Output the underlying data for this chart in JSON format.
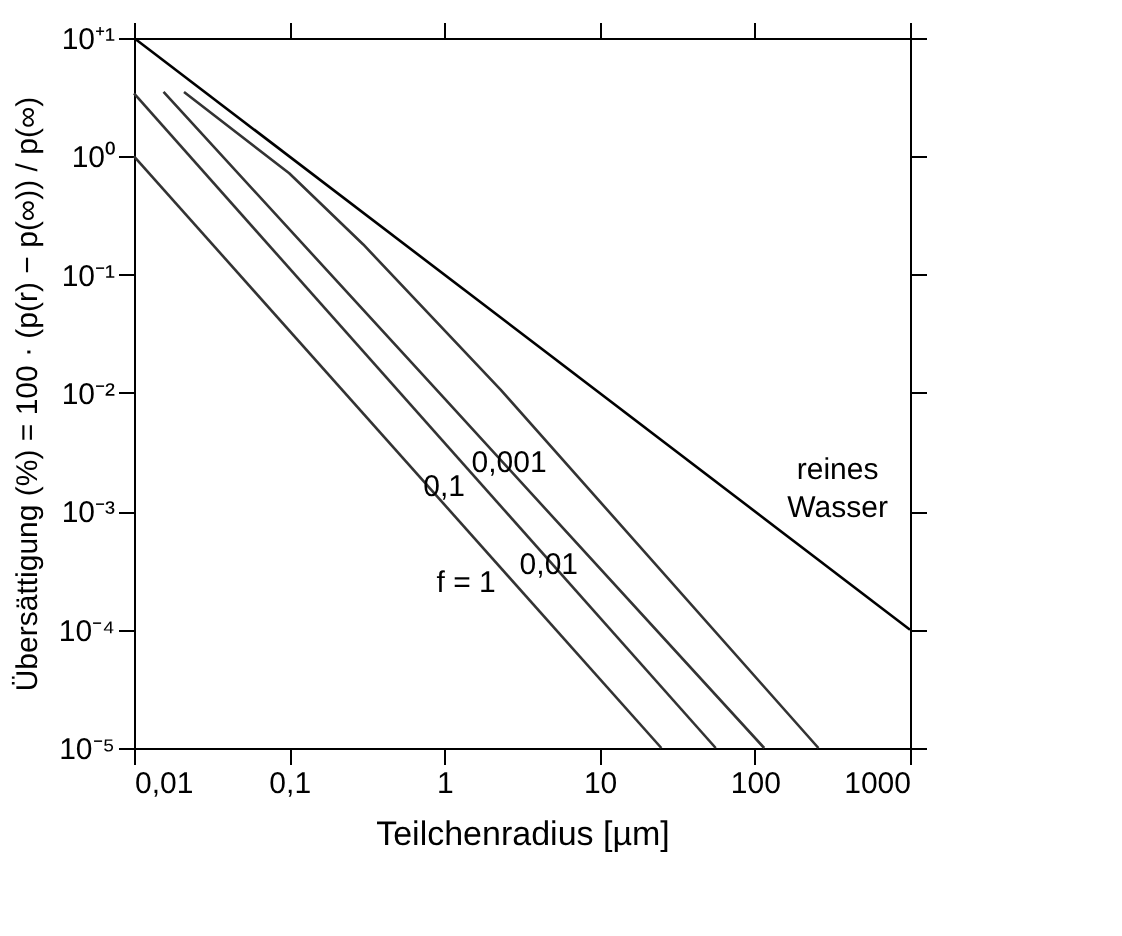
{
  "chart_data": {
    "type": "line",
    "xlabel": "Teilchenradius  [µm]",
    "ylabel": "Übersättigung (%)  = 100 · (p(r) − p(∞)) / p(∞)",
    "log": "xy",
    "xlim": [
      0.01,
      1000
    ],
    "xticks": [
      {
        "value": 0.01,
        "label": "0,01"
      },
      {
        "value": 0.1,
        "label": "0,1"
      },
      1,
      10,
      100,
      1000
    ],
    "ylim": [
      1e-05,
      10
    ],
    "yticks": [
      {
        "value": 10,
        "label": "10⁺¹"
      },
      {
        "value": 1,
        "label": "10⁰"
      },
      {
        "value": 0.1,
        "label": "10⁻¹"
      },
      {
        "value": 0.01,
        "label": "10⁻²"
      },
      {
        "value": 0.001,
        "label": "10⁻³"
      },
      {
        "value": 0.0001,
        "label": "10⁻⁴"
      },
      {
        "value": 1e-05,
        "label": "10⁻⁵"
      }
    ],
    "grid": false,
    "legend": false,
    "marker": "none",
    "line_style": "solid",
    "series": [
      {
        "name": "f = 1",
        "color": "#333333",
        "x": [
          0.01,
          25
        ],
        "values": [
          1,
          1e-05
        ]
      },
      {
        "name": "0,1",
        "color": "#333333",
        "x": [
          0.01,
          56
        ],
        "values": [
          3.4,
          1e-05
        ]
      },
      {
        "name": "0,01",
        "color": "#333333",
        "x": [
          0.0155,
          1,
          115
        ],
        "values": [
          3.5,
          0.009,
          1e-05
        ]
      },
      {
        "name": "0,001",
        "color": "#333333",
        "x": [
          0.021,
          0.1,
          0.3,
          2.3,
          257
        ],
        "values": [
          3.5,
          0.72,
          0.18,
          0.0107,
          1e-05
        ]
      },
      {
        "name": "reines\nWasser",
        "color": "#000000",
        "x": [
          0.01,
          1000
        ],
        "values": [
          10,
          0.0001
        ]
      }
    ]
  }
}
